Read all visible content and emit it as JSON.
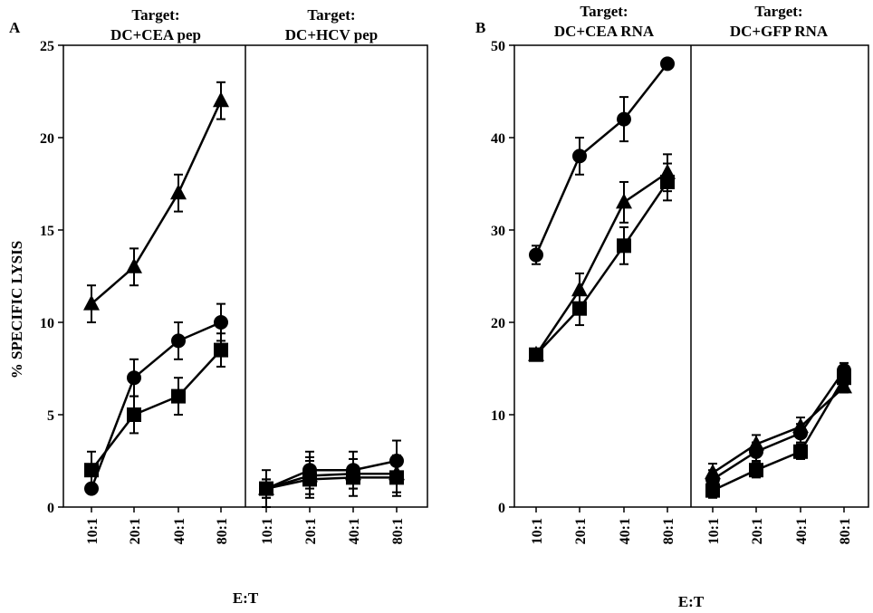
{
  "figure": {
    "ylabel": "% SPECIFIC LYSIS",
    "xlabel": "E:T"
  },
  "panels": [
    {
      "letter": "A",
      "ylim": [
        0,
        25
      ],
      "yticks": [
        0,
        5,
        10,
        15,
        20,
        25
      ],
      "subpanels": [
        {
          "title_line1": "Target:",
          "title_line2": "DC+CEA pep",
          "chart_data": {
            "type": "line",
            "categories": [
              "10:1",
              "20:1",
              "40:1",
              "80:1"
            ],
            "xlabel": "E:T",
            "ylabel": "% SPECIFIC LYSIS",
            "ylim": [
              0,
              25
            ],
            "series": [
              {
                "marker": "triangle",
                "values": [
                  11,
                  13,
                  17,
                  22
                ],
                "errors": [
                  1,
                  1,
                  1,
                  1
                ]
              },
              {
                "marker": "circle",
                "values": [
                  1,
                  7,
                  9,
                  10
                ],
                "errors": [
                  0,
                  1,
                  1,
                  1
                ]
              },
              {
                "marker": "square",
                "values": [
                  2,
                  5,
                  6,
                  8.5
                ],
                "errors": [
                  1,
                  1,
                  1,
                  0.9
                ]
              }
            ]
          }
        },
        {
          "title_line1": "Target:",
          "title_line2": "DC+HCV pep",
          "chart_data": {
            "type": "line",
            "categories": [
              "10:1",
              "20:1",
              "40:1",
              "80:1"
            ],
            "xlabel": "E:T",
            "ylabel": "% SPECIFIC LYSIS",
            "ylim": [
              0,
              25
            ],
            "series": [
              {
                "marker": "triangle",
                "values": [
                  1,
                  1.7,
                  1.8,
                  1.8
                ],
                "errors": [
                  0.5,
                  1,
                  0.8,
                  1
                ]
              },
              {
                "marker": "circle",
                "values": [
                  1,
                  2,
                  2,
                  2.5
                ],
                "errors": [
                  1,
                  1,
                  1,
                  1.1
                ]
              },
              {
                "marker": "square",
                "values": [
                  1,
                  1.5,
                  1.6,
                  1.6
                ],
                "errors": [
                  0.5,
                  1,
                  1,
                  1
                ]
              }
            ]
          }
        }
      ]
    },
    {
      "letter": "B",
      "ylim": [
        0,
        50
      ],
      "yticks": [
        0,
        10,
        20,
        30,
        40,
        50
      ],
      "subpanels": [
        {
          "title_line1": "Target:",
          "title_line2": "DC+CEA RNA",
          "chart_data": {
            "type": "line",
            "categories": [
              "10:1",
              "20:1",
              "40:1",
              "80:1"
            ],
            "xlabel": "E:T",
            "ylabel": "% SPECIFIC LYSIS",
            "ylim": [
              0,
              50
            ],
            "series": [
              {
                "marker": "circle",
                "values": [
                  27.3,
                  38,
                  42,
                  48
                ],
                "errors": [
                  1,
                  2,
                  2.4,
                  0.4
                ]
              },
              {
                "marker": "triangle",
                "values": [
                  16.5,
                  23.5,
                  33,
                  36.2
                ],
                "errors": [
                  0.6,
                  1.8,
                  2.2,
                  2
                ]
              },
              {
                "marker": "square",
                "values": [
                  16.5,
                  21.5,
                  28.3,
                  35.2
                ],
                "errors": [
                  0.6,
                  1.8,
                  2,
                  2
                ]
              }
            ]
          }
        },
        {
          "title_line1": "Target:",
          "title_line2": "DC+GFP RNA",
          "chart_data": {
            "type": "line",
            "categories": [
              "10:1",
              "20:1",
              "40:1",
              "80:1"
            ],
            "xlabel": "E:T",
            "ylabel": "% SPECIFIC LYSIS",
            "ylim": [
              0,
              50
            ],
            "series": [
              {
                "marker": "triangle",
                "values": [
                  3.7,
                  6.8,
                  8.7,
                  13
                ],
                "errors": [
                  1,
                  1,
                  1,
                  0.6
                ]
              },
              {
                "marker": "circle",
                "values": [
                  3,
                  6,
                  8,
                  14.8
                ],
                "errors": [
                  1,
                  1,
                  1,
                  0.8
                ]
              },
              {
                "marker": "square",
                "values": [
                  1.8,
                  4,
                  6,
                  14
                ],
                "errors": [
                  0.8,
                  0.8,
                  0.8,
                  0.8
                ]
              }
            ]
          }
        }
      ]
    }
  ]
}
